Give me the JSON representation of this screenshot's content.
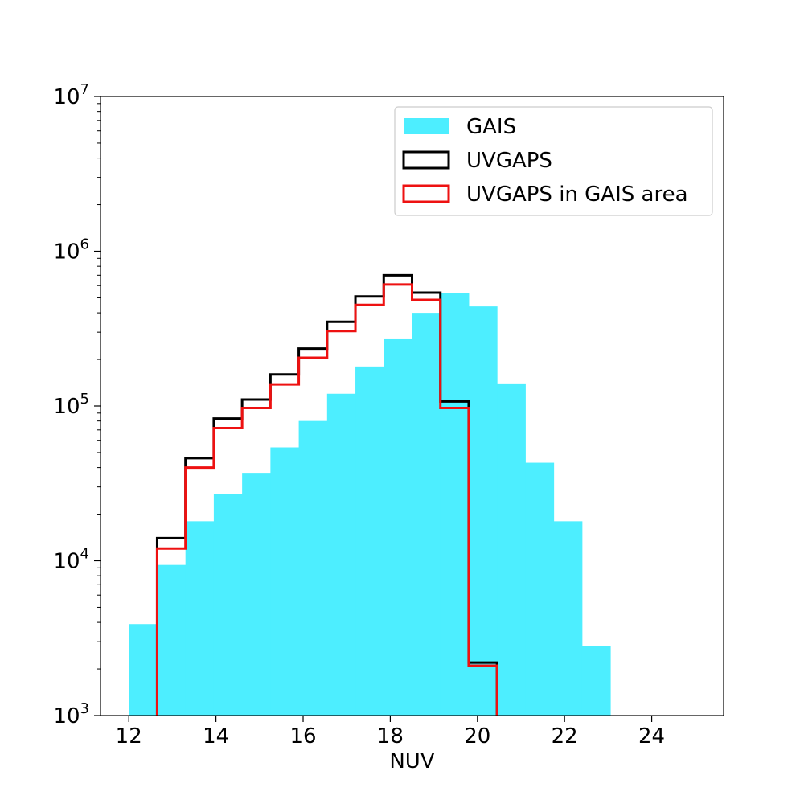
{
  "chart_data": {
    "type": "bar",
    "title": "",
    "xlabel": "NUV",
    "ylabel": "",
    "xlim": [
      11.35,
      25.65
    ],
    "ylim": [
      1000,
      10000000
    ],
    "yscale": "log",
    "grid": false,
    "legend_placement": "top-right",
    "x_ticks": [
      {
        "value": 12,
        "label": "12"
      },
      {
        "value": 14,
        "label": "14"
      },
      {
        "value": 16,
        "label": "16"
      },
      {
        "value": 18,
        "label": "18"
      },
      {
        "value": 20,
        "label": "20"
      },
      {
        "value": 22,
        "label": "22"
      },
      {
        "value": 24,
        "label": "24"
      }
    ],
    "y_ticks": [
      {
        "value": 1000,
        "base": "10",
        "exp": "3"
      },
      {
        "value": 10000,
        "base": "10",
        "exp": "4"
      },
      {
        "value": 100000,
        "base": "10",
        "exp": "5"
      },
      {
        "value": 1000000,
        "base": "10",
        "exp": "6"
      },
      {
        "value": 10000000,
        "base": "10",
        "exp": "7"
      }
    ],
    "series": [
      {
        "name": "GAIS",
        "style": "filled",
        "color": "#4deeff",
        "bins": [
          {
            "x0": 12.0,
            "x1": 12.65,
            "value": 3900
          },
          {
            "x0": 12.65,
            "x1": 13.3,
            "value": 9400
          },
          {
            "x0": 13.3,
            "x1": 13.95,
            "value": 18000
          },
          {
            "x0": 13.95,
            "x1": 14.6,
            "value": 27000
          },
          {
            "x0": 14.6,
            "x1": 15.25,
            "value": 37000
          },
          {
            "x0": 15.25,
            "x1": 15.9,
            "value": 54000
          },
          {
            "x0": 15.9,
            "x1": 16.55,
            "value": 80000
          },
          {
            "x0": 16.55,
            "x1": 17.2,
            "value": 120000
          },
          {
            "x0": 17.2,
            "x1": 17.85,
            "value": 180000
          },
          {
            "x0": 17.85,
            "x1": 18.5,
            "value": 270000
          },
          {
            "x0": 18.5,
            "x1": 19.15,
            "value": 400000
          },
          {
            "x0": 19.15,
            "x1": 19.8,
            "value": 540000
          },
          {
            "x0": 19.8,
            "x1": 20.45,
            "value": 440000
          },
          {
            "x0": 20.45,
            "x1": 21.1,
            "value": 140000
          },
          {
            "x0": 21.1,
            "x1": 21.75,
            "value": 43000
          },
          {
            "x0": 21.75,
            "x1": 22.4,
            "value": 18000
          },
          {
            "x0": 22.4,
            "x1": 23.05,
            "value": 2800
          }
        ]
      },
      {
        "name": "UVGAPS",
        "style": "step",
        "color": "#000000",
        "bins": [
          {
            "x0": 12.65,
            "x1": 13.3,
            "value": 14000
          },
          {
            "x0": 13.3,
            "x1": 13.95,
            "value": 46000
          },
          {
            "x0": 13.95,
            "x1": 14.6,
            "value": 83000
          },
          {
            "x0": 14.6,
            "x1": 15.25,
            "value": 110000
          },
          {
            "x0": 15.25,
            "x1": 15.9,
            "value": 160000
          },
          {
            "x0": 15.9,
            "x1": 16.55,
            "value": 235000
          },
          {
            "x0": 16.55,
            "x1": 17.2,
            "value": 350000
          },
          {
            "x0": 17.2,
            "x1": 17.85,
            "value": 510000
          },
          {
            "x0": 17.85,
            "x1": 18.5,
            "value": 700000
          },
          {
            "x0": 18.5,
            "x1": 19.15,
            "value": 540000
          },
          {
            "x0": 19.15,
            "x1": 19.8,
            "value": 107000
          },
          {
            "x0": 19.8,
            "x1": 20.45,
            "value": 2200
          }
        ]
      },
      {
        "name": "UVGAPS in GAIS area",
        "style": "step",
        "color": "#ee1111",
        "bins": [
          {
            "x0": 12.65,
            "x1": 13.3,
            "value": 12000
          },
          {
            "x0": 13.3,
            "x1": 13.95,
            "value": 40000
          },
          {
            "x0": 13.95,
            "x1": 14.6,
            "value": 72000
          },
          {
            "x0": 14.6,
            "x1": 15.25,
            "value": 97000
          },
          {
            "x0": 15.25,
            "x1": 15.9,
            "value": 138000
          },
          {
            "x0": 15.9,
            "x1": 16.55,
            "value": 205000
          },
          {
            "x0": 16.55,
            "x1": 17.2,
            "value": 305000
          },
          {
            "x0": 17.2,
            "x1": 17.85,
            "value": 450000
          },
          {
            "x0": 17.85,
            "x1": 18.5,
            "value": 610000
          },
          {
            "x0": 18.5,
            "x1": 19.15,
            "value": 485000
          },
          {
            "x0": 19.15,
            "x1": 19.8,
            "value": 97000
          },
          {
            "x0": 19.8,
            "x1": 20.45,
            "value": 2100
          }
        ]
      }
    ]
  }
}
